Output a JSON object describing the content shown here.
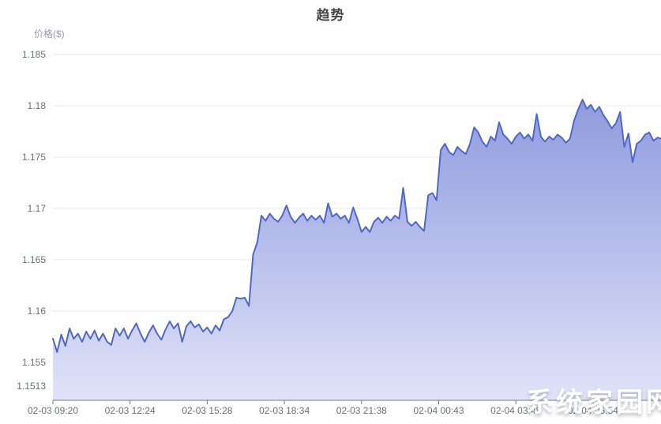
{
  "title": "趋势",
  "watermark": "系统家园网",
  "chart_data": {
    "type": "area",
    "title": "趋势",
    "y_axis_name": "价格($)",
    "x_tick_labels": [
      "02-03 09:20",
      "02-03 12:24",
      "02-03 15:28",
      "02-03 18:34",
      "02-03 21:38",
      "02-04 00:43",
      "02-04 03:48",
      "02-04 06:54"
    ],
    "y_tick_labels": [
      "1.185",
      "1.18",
      "1.175",
      "1.17",
      "1.165",
      "1.16",
      "1.155",
      "1.1513"
    ],
    "y_tick_values": [
      1.185,
      1.18,
      1.175,
      1.17,
      1.165,
      1.16,
      1.155,
      1.1513
    ],
    "ylim": [
      1.1513,
      1.185
    ],
    "grid": true,
    "legend_position": "none",
    "start_time": "02-03 09:20",
    "interval_minutes": 10,
    "minutes_per_x_tick": 185,
    "series": [
      {
        "name": "价格($)",
        "values": [
          1.1573,
          1.156,
          1.1577,
          1.1566,
          1.1583,
          1.1573,
          1.1578,
          1.157,
          1.158,
          1.1573,
          1.1581,
          1.1571,
          1.1578,
          1.157,
          1.1567,
          1.1583,
          1.1576,
          1.1583,
          1.1573,
          1.1581,
          1.1588,
          1.1578,
          1.157,
          1.1579,
          1.1586,
          1.1578,
          1.1572,
          1.1582,
          1.159,
          1.1583,
          1.1588,
          1.157,
          1.1585,
          1.159,
          1.1584,
          1.1587,
          1.158,
          1.1584,
          1.1578,
          1.1586,
          1.1581,
          1.1592,
          1.1594,
          1.16,
          1.1613,
          1.1612,
          1.1613,
          1.1605,
          1.1655,
          1.1667,
          1.1693,
          1.1688,
          1.1695,
          1.169,
          1.1687,
          1.1693,
          1.1703,
          1.1692,
          1.1686,
          1.1691,
          1.1695,
          1.1688,
          1.1693,
          1.1689,
          1.1693,
          1.1686,
          1.1705,
          1.1692,
          1.1695,
          1.169,
          1.1693,
          1.1686,
          1.1701,
          1.169,
          1.1677,
          1.1682,
          1.1677,
          1.1687,
          1.1691,
          1.1686,
          1.1692,
          1.1688,
          1.1693,
          1.169,
          1.172,
          1.1687,
          1.1683,
          1.1687,
          1.1682,
          1.1678,
          1.1713,
          1.1715,
          1.1708,
          1.1757,
          1.1763,
          1.1755,
          1.1752,
          1.176,
          1.1756,
          1.1753,
          1.1763,
          1.1779,
          1.1774,
          1.1765,
          1.176,
          1.177,
          1.1766,
          1.1784,
          1.1772,
          1.1768,
          1.1763,
          1.177,
          1.1774,
          1.1768,
          1.1772,
          1.1766,
          1.1792,
          1.177,
          1.1765,
          1.177,
          1.1767,
          1.1772,
          1.1769,
          1.1764,
          1.1768,
          1.1786,
          1.1797,
          1.1806,
          1.1797,
          1.1801,
          1.1794,
          1.1799,
          1.1791,
          1.1785,
          1.1778,
          1.1783,
          1.1794,
          1.176,
          1.1773,
          1.1745,
          1.1763,
          1.1766,
          1.1772,
          1.1774,
          1.1766,
          1.1769,
          1.1768
        ]
      }
    ],
    "colors": {
      "line": "#5068c5",
      "area_top": "#8f9bde",
      "area_bottom": "#e0e3f8",
      "grid": "#e5e9f4",
      "axis": "#75787f",
      "label": "#6e7079",
      "title": "#454545",
      "axis_name": "#989da6",
      "watermark": "#ffffff"
    }
  }
}
